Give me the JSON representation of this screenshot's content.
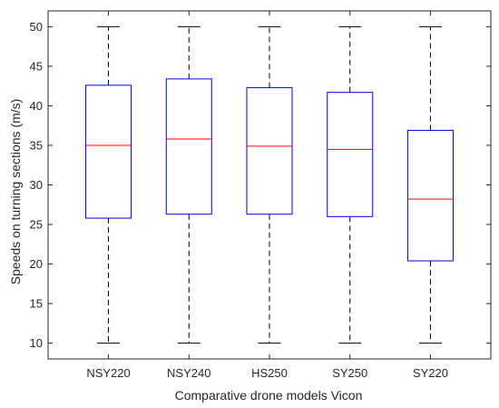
{
  "chart_data": {
    "type": "boxplot",
    "title": "",
    "xlabel": "Comparative drone models Vicon",
    "ylabel": "Speeds on turning sections (m/s)",
    "ylim": [
      8,
      52
    ],
    "yticks": [
      "10",
      "15",
      "20",
      "25",
      "30",
      "35",
      "40",
      "45",
      "50"
    ],
    "grid": false,
    "categories": [
      "NSY220",
      "NSY240",
      "HS250",
      "SY250",
      "SY220"
    ],
    "boxes": [
      {
        "min": 10,
        "q1": 25.8,
        "median": 35.0,
        "q3": 42.6,
        "max": 50
      },
      {
        "min": 10,
        "q1": 26.3,
        "median": 35.8,
        "q3": 43.4,
        "max": 50
      },
      {
        "min": 10,
        "q1": 26.3,
        "median": 34.9,
        "q3": 42.3,
        "max": 50
      },
      {
        "min": 10,
        "q1": 26.0,
        "median": 34.5,
        "q3": 41.7,
        "max": 50
      },
      {
        "min": 10,
        "q1": 20.4,
        "median": 28.2,
        "q3": 36.9,
        "max": 50
      }
    ],
    "colors": {
      "box": "#0000ff",
      "median": "#ff0000",
      "whisker": "#000000",
      "axis": "#262626"
    }
  }
}
